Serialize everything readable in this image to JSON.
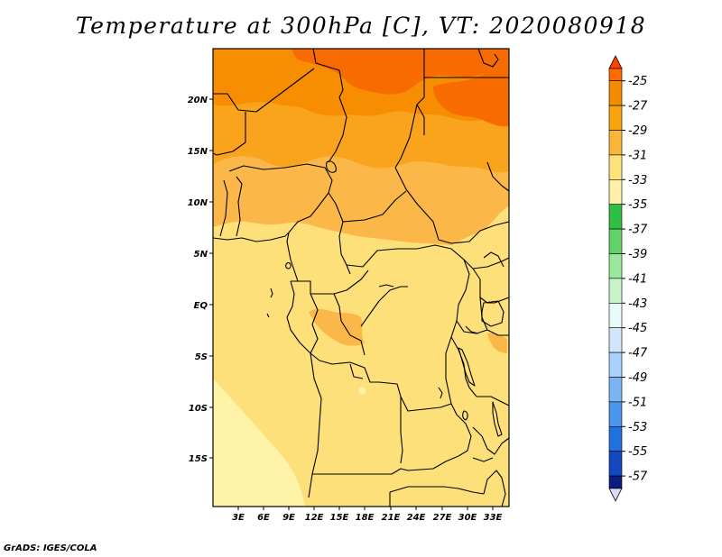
{
  "title": "Temperature at 300hPa [C], VT: 2020080918",
  "credit": "GrADS: IGES/COLA",
  "lat_axis": [
    "20N",
    "15N",
    "10N",
    "5N",
    "EQ",
    "5S",
    "10S",
    "15S"
  ],
  "lon_axis": [
    "3E",
    "6E",
    "9E",
    "12E",
    "15E",
    "18E",
    "21E",
    "24E",
    "27E",
    "30E",
    "33E"
  ],
  "colorbar": {
    "labels": [
      "-25",
      "-27",
      "-29",
      "-31",
      "-33",
      "-35",
      "-37",
      "-39",
      "-41",
      "-43",
      "-45",
      "-47",
      "-49",
      "-51",
      "-53",
      "-55",
      "-57"
    ],
    "colors": [
      "#ff6a00",
      "#f58c00",
      "#f9a30f",
      "#fbb63a",
      "#fde17a",
      "#fff0a8",
      "#2fbf44",
      "#63d369",
      "#9be79b",
      "#c9f3c9",
      "#e8fbf8",
      "#cfe6fb",
      "#a9d0fa",
      "#7ab4f2",
      "#4a96ec",
      "#2170e0",
      "#1348c2",
      "#0a1d80"
    ],
    "arrow_top": "#ff4400",
    "arrow_bottom": "#dcdcf6"
  },
  "map_colors": {
    "c25": "#f76b00",
    "c27": "#f78d00",
    "c29": "#f9a41c",
    "c31": "#fbb748",
    "c33": "#fde07a",
    "c35": "#fff3a8",
    "border": "#000000"
  }
}
